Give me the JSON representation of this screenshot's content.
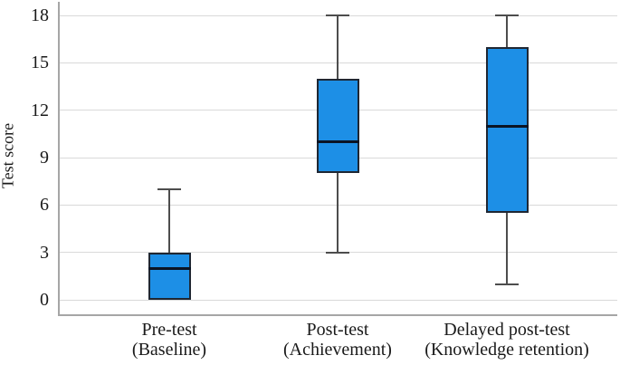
{
  "chart_data": {
    "type": "boxplot",
    "title": "",
    "xlabel": "",
    "ylabel": "Test score",
    "ylim": [
      0,
      18
    ],
    "yticks": [
      0,
      3,
      6,
      9,
      12,
      15,
      18
    ],
    "grid": "horizontal",
    "legend": "none",
    "categories": [
      {
        "line1": "Pre-test",
        "line2": "(Baseline)",
        "full": "Pre-test (Baseline)"
      },
      {
        "line1": "Post-test",
        "line2": "(Achievement)",
        "full": "Post-test (Achievement)"
      },
      {
        "line1": "Delayed post-test",
        "line2": "(Knowledge retention)",
        "full": "Delayed post-test (Knowledge retention)"
      }
    ],
    "boxes": [
      {
        "category": "Pre-test (Baseline)",
        "min": 0,
        "q1": 0,
        "median": 2,
        "q3": 3,
        "max": 7
      },
      {
        "category": "Post-test (Achievement)",
        "min": 3,
        "q1": 8,
        "median": 10,
        "q3": 14,
        "max": 18
      },
      {
        "category": "Delayed post-test (Knowledge retention)",
        "min": 1,
        "q1": 5.5,
        "median": 11,
        "q3": 16,
        "max": 18
      }
    ],
    "colors": {
      "box_fill": "#1d8fe6",
      "box_border": "#1f2733",
      "median": "#0b1424",
      "whisker": "#4d4d4d",
      "gridline": "#d9d9d9",
      "axis": "#a6a6a6",
      "text": "#1a1a1a"
    }
  }
}
